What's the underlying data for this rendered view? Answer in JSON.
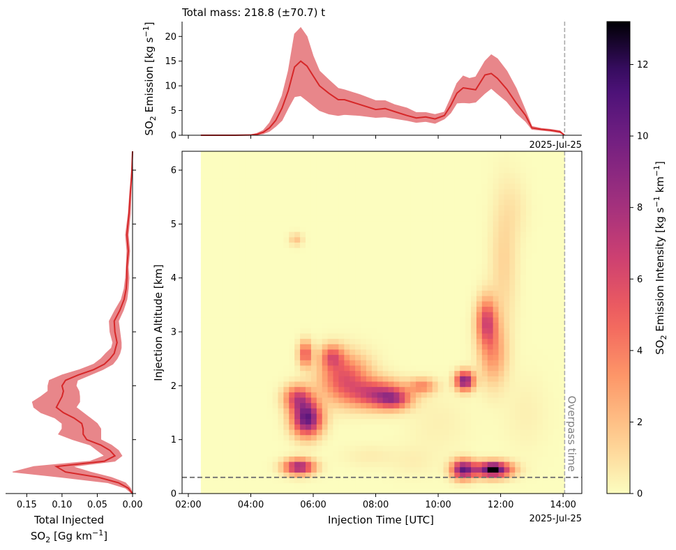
{
  "chart_data": [
    {
      "type": "area",
      "panel": "top",
      "title": "Total mass: 218.8 (±70.7) t",
      "ylabel_main": "SO",
      "ylabel_sub": "2",
      "ylabel_tail": " Emission [kg s",
      "ylabel_sup": "−1",
      "ylabel_end": "]",
      "date_label": "2025-Jul-25",
      "ylim": [
        0,
        23
      ],
      "yticks": [
        0,
        5,
        10,
        15,
        20
      ],
      "xlim_hours": [
        1.8,
        14.6
      ],
      "x_hours": [
        2.4,
        3,
        3.5,
        4,
        4.2,
        4.4,
        4.6,
        4.8,
        5,
        5.2,
        5.4,
        5.6,
        5.8,
        6,
        6.2,
        6.5,
        6.8,
        7,
        7.5,
        8,
        8.3,
        8.6,
        9,
        9.3,
        9.6,
        9.9,
        10.2,
        10.4,
        10.6,
        10.8,
        11,
        11.2,
        11.5,
        11.7,
        11.9,
        12.2,
        12.5,
        12.8,
        13,
        13.3,
        13.6,
        13.9,
        14.05
      ],
      "mean": [
        0,
        0,
        0,
        0.05,
        0.2,
        0.6,
        1.5,
        3,
        5.5,
        9,
        13.8,
        15,
        14,
        12,
        10,
        8.5,
        7.2,
        7.2,
        6.2,
        5.2,
        5.4,
        4.8,
        4,
        3.5,
        3.7,
        3.3,
        4,
        6,
        8.5,
        9.6,
        9.4,
        9.2,
        12.2,
        12.5,
        11.5,
        9.3,
        6.5,
        4,
        1.5,
        1.2,
        1,
        0.7,
        0
      ],
      "upper": [
        0,
        0,
        0.02,
        0.1,
        0.4,
        1,
        2.5,
        5,
        8,
        13,
        20.5,
        21.8,
        20,
        16,
        13,
        11.2,
        9.5,
        9.2,
        8.2,
        7,
        7,
        6.2,
        5.5,
        4.6,
        4.6,
        4.2,
        4.7,
        7.5,
        10.5,
        12,
        11.5,
        11.8,
        15,
        16.3,
        15.5,
        13,
        9.5,
        5,
        1.8,
        1.4,
        1.2,
        0.9,
        0
      ],
      "lower": [
        0,
        0,
        0,
        0.02,
        0.1,
        0.3,
        0.8,
        1.8,
        3,
        5.5,
        7.8,
        8,
        7,
        6,
        5,
        4.3,
        4,
        4.2,
        4,
        3.6,
        3.7,
        3.4,
        3,
        2.6,
        2.8,
        2.4,
        3.3,
        4.5,
        6.5,
        6.6,
        6.5,
        6.7,
        8.5,
        9.5,
        8.4,
        6.8,
        4.5,
        2.8,
        1.2,
        1,
        0.8,
        0.5,
        0
      ],
      "series_color": "#d62728",
      "band_color": "#e8868a",
      "overpass_hour": 14.05
    },
    {
      "type": "area",
      "panel": "left",
      "xlabel_line1": "Total Injected",
      "xlabel_line2_main": "SO",
      "xlabel_line2_sub": "2",
      "xlabel_line2_tail": " [Gg km",
      "xlabel_line2_sup": "−1",
      "xlabel_line2_end": "]",
      "xlim": [
        0.18,
        0.0
      ],
      "xticks": [
        0.15,
        0.1,
        0.05,
        0.0
      ],
      "xtick_labels": [
        "0.15",
        "0.10",
        "0.05",
        "0.00"
      ],
      "ylim": [
        0,
        6.35
      ],
      "altitude": [
        0,
        0.1,
        0.2,
        0.3,
        0.4,
        0.5,
        0.6,
        0.7,
        0.8,
        0.9,
        1,
        1.1,
        1.2,
        1.3,
        1.4,
        1.5,
        1.6,
        1.7,
        1.8,
        1.9,
        2,
        2.1,
        2.2,
        2.3,
        2.4,
        2.5,
        2.6,
        2.7,
        2.8,
        3,
        3.2,
        3.4,
        3.6,
        3.8,
        4,
        4.2,
        4.5,
        4.8,
        5.2,
        5.6,
        6,
        6.35
      ],
      "mean": [
        0,
        0.006,
        0.02,
        0.048,
        0.095,
        0.108,
        0.04,
        0.025,
        0.032,
        0.045,
        0.065,
        0.07,
        0.07,
        0.072,
        0.083,
        0.098,
        0.108,
        0.104,
        0.1,
        0.098,
        0.1,
        0.095,
        0.077,
        0.055,
        0.04,
        0.032,
        0.026,
        0.024,
        0.022,
        0.025,
        0.026,
        0.018,
        0.012,
        0.009,
        0.008,
        0.008,
        0.006,
        0.008,
        0.005,
        0.003,
        0.001,
        0
      ],
      "upper": [
        0.001,
        0.01,
        0.035,
        0.1,
        0.17,
        0.14,
        0.06,
        0.04,
        0.05,
        0.06,
        0.085,
        0.105,
        0.1,
        0.1,
        0.11,
        0.13,
        0.14,
        0.142,
        0.13,
        0.12,
        0.12,
        0.118,
        0.1,
        0.075,
        0.055,
        0.045,
        0.038,
        0.03,
        0.028,
        0.032,
        0.033,
        0.025,
        0.016,
        0.012,
        0.01,
        0.009,
        0.008,
        0.01,
        0.006,
        0.004,
        0.001,
        0
      ],
      "lower": [
        0,
        0.003,
        0.01,
        0.03,
        0.06,
        0.085,
        0.025,
        0.015,
        0.02,
        0.03,
        0.045,
        0.045,
        0.045,
        0.05,
        0.06,
        0.07,
        0.08,
        0.075,
        0.075,
        0.076,
        0.08,
        0.078,
        0.06,
        0.042,
        0.028,
        0.022,
        0.018,
        0.016,
        0.016,
        0.018,
        0.02,
        0.013,
        0.008,
        0.006,
        0.005,
        0.006,
        0.004,
        0.006,
        0.003,
        0.002,
        0.0005,
        0
      ]
    },
    {
      "type": "heatmap",
      "panel": "main",
      "xlabel": "Injection Time [UTC]",
      "ylabel": "Injection Altitude [km]",
      "date_label": "2025-Jul-25",
      "xticks_hours": [
        2,
        4,
        6,
        8,
        10,
        12,
        14
      ],
      "xtick_labels": [
        "02:00",
        "04:00",
        "06:00",
        "08:00",
        "10:00",
        "12:00",
        "14:00"
      ],
      "yticks": [
        0,
        1,
        2,
        3,
        4,
        5,
        6
      ],
      "xlim_hours": [
        1.8,
        14.6
      ],
      "ylim": [
        0,
        6.35
      ],
      "data_x_range_hours": [
        2.4,
        14.05
      ],
      "overpass_hour": 14.05,
      "overpass_label": "Overpass time",
      "reference_altitude": 0.3,
      "blobs": [
        {
          "t": 5.45,
          "z": 4.72,
          "st": 0.15,
          "sz": 0.08,
          "a": 1.8
        },
        {
          "t": 5.55,
          "z": 0.5,
          "st": 0.33,
          "sz": 0.1,
          "a": 8.5
        },
        {
          "t": 5.5,
          "z": 1.78,
          "st": 0.3,
          "sz": 0.16,
          "a": 5.8
        },
        {
          "t": 5.8,
          "z": 1.4,
          "st": 0.32,
          "sz": 0.22,
          "a": 10.5
        },
        {
          "t": 5.75,
          "z": 2.6,
          "st": 0.15,
          "sz": 0.16,
          "a": 5.2
        },
        {
          "t": 6.6,
          "z": 2.55,
          "st": 0.25,
          "sz": 0.15,
          "a": 4.5
        },
        {
          "t": 7.0,
          "z": 2.15,
          "st": 0.55,
          "sz": 0.3,
          "a": 5.5
        },
        {
          "t": 8.1,
          "z": 1.85,
          "st": 0.6,
          "sz": 0.18,
          "a": 6.5
        },
        {
          "t": 8.6,
          "z": 1.75,
          "st": 0.35,
          "sz": 0.12,
          "a": 4.5
        },
        {
          "t": 9.5,
          "z": 2.0,
          "st": 0.3,
          "sz": 0.1,
          "a": 3.5
        },
        {
          "t": 10.85,
          "z": 2.1,
          "st": 0.2,
          "sz": 0.12,
          "a": 9.5
        },
        {
          "t": 10.8,
          "z": 0.45,
          "st": 0.25,
          "sz": 0.12,
          "a": 10
        },
        {
          "t": 11.75,
          "z": 0.45,
          "st": 0.4,
          "sz": 0.1,
          "a": 11.5
        },
        {
          "t": 11.78,
          "z": 0.47,
          "st": 0.12,
          "sz": 0.05,
          "a": 3.5
        },
        {
          "t": 11.55,
          "z": 3.2,
          "st": 0.22,
          "sz": 0.3,
          "a": 5.8
        },
        {
          "t": 11.75,
          "z": 2.6,
          "st": 0.3,
          "sz": 0.4,
          "a": 3.2
        },
        {
          "t": 12.1,
          "z": 4.3,
          "st": 0.3,
          "sz": 0.9,
          "a": 1.3
        },
        {
          "t": 12.5,
          "z": 5.3,
          "st": 0.3,
          "sz": 0.4,
          "a": 0.5
        },
        {
          "t": 7.8,
          "z": 0.7,
          "st": 0.6,
          "sz": 0.15,
          "a": 0.5
        },
        {
          "t": 9.2,
          "z": 0.6,
          "st": 0.5,
          "sz": 0.2,
          "a": 0.4
        },
        {
          "t": 10.0,
          "z": 1.3,
          "st": 0.7,
          "sz": 0.4,
          "a": 0.4
        },
        {
          "t": 12.8,
          "z": 1.5,
          "st": 0.5,
          "sz": 0.5,
          "a": 0.4
        }
      ]
    },
    {
      "type": "colorbar",
      "panel": "colorbar",
      "label_main": "SO",
      "label_sub": "2",
      "label_tail": " Emission Intensity [kg s",
      "label_sup1": "−1",
      "label_mid": " km",
      "label_sup2": "−1",
      "label_end": "]",
      "vmin": 0,
      "vmax": 13.2,
      "ticks": [
        0,
        2,
        4,
        6,
        8,
        10,
        12
      ],
      "colormap": "magma_r"
    }
  ]
}
